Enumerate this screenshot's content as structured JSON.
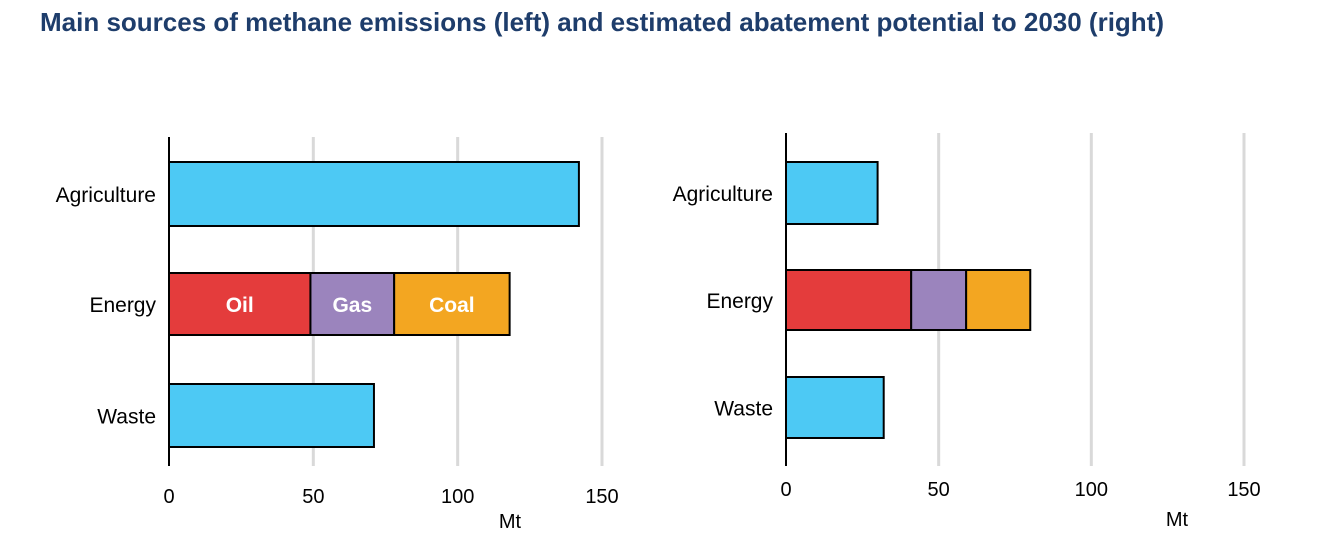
{
  "title": "Main sources of methane emissions (left) and estimated abatement potential to 2030 (right)",
  "colors": {
    "agriculture": "#4dc9f4",
    "waste": "#4dc9f4",
    "oil": "#e43c3c",
    "gas": "#9b84bd",
    "coal": "#f3a621",
    "grid": "#d9d9d9",
    "title": "#1e3d6b"
  },
  "chart_data": [
    {
      "type": "bar",
      "orientation": "horizontal",
      "stacked": true,
      "categories": [
        "Agriculture",
        "Energy",
        "Waste"
      ],
      "series": [
        {
          "key": "agriculture",
          "values": [
            142,
            0,
            0
          ]
        },
        {
          "key": "oil",
          "name": "Oil",
          "values": [
            0,
            49,
            0
          ]
        },
        {
          "key": "gas",
          "name": "Gas",
          "values": [
            0,
            29,
            0
          ]
        },
        {
          "key": "coal",
          "name": "Coal",
          "values": [
            0,
            40,
            0
          ]
        },
        {
          "key": "waste",
          "values": [
            0,
            0,
            71
          ]
        }
      ],
      "xlabel": "Mt",
      "xlim": [
        0,
        150
      ],
      "xticks": [
        0,
        50,
        100,
        150
      ],
      "grid": true,
      "segment_labels_shown": true
    },
    {
      "type": "bar",
      "orientation": "horizontal",
      "stacked": true,
      "categories": [
        "Agriculture",
        "Energy",
        "Waste"
      ],
      "series": [
        {
          "key": "agriculture",
          "values": [
            30,
            0,
            0
          ]
        },
        {
          "key": "oil",
          "values": [
            0,
            41,
            0
          ]
        },
        {
          "key": "gas",
          "values": [
            0,
            18,
            0
          ]
        },
        {
          "key": "coal",
          "values": [
            0,
            21,
            0
          ]
        },
        {
          "key": "waste",
          "values": [
            0,
            0,
            32
          ]
        }
      ],
      "xlabel": "Mt",
      "xlim": [
        0,
        150
      ],
      "xticks": [
        0,
        50,
        100,
        150
      ],
      "grid": true,
      "segment_labels_shown": false
    }
  ]
}
